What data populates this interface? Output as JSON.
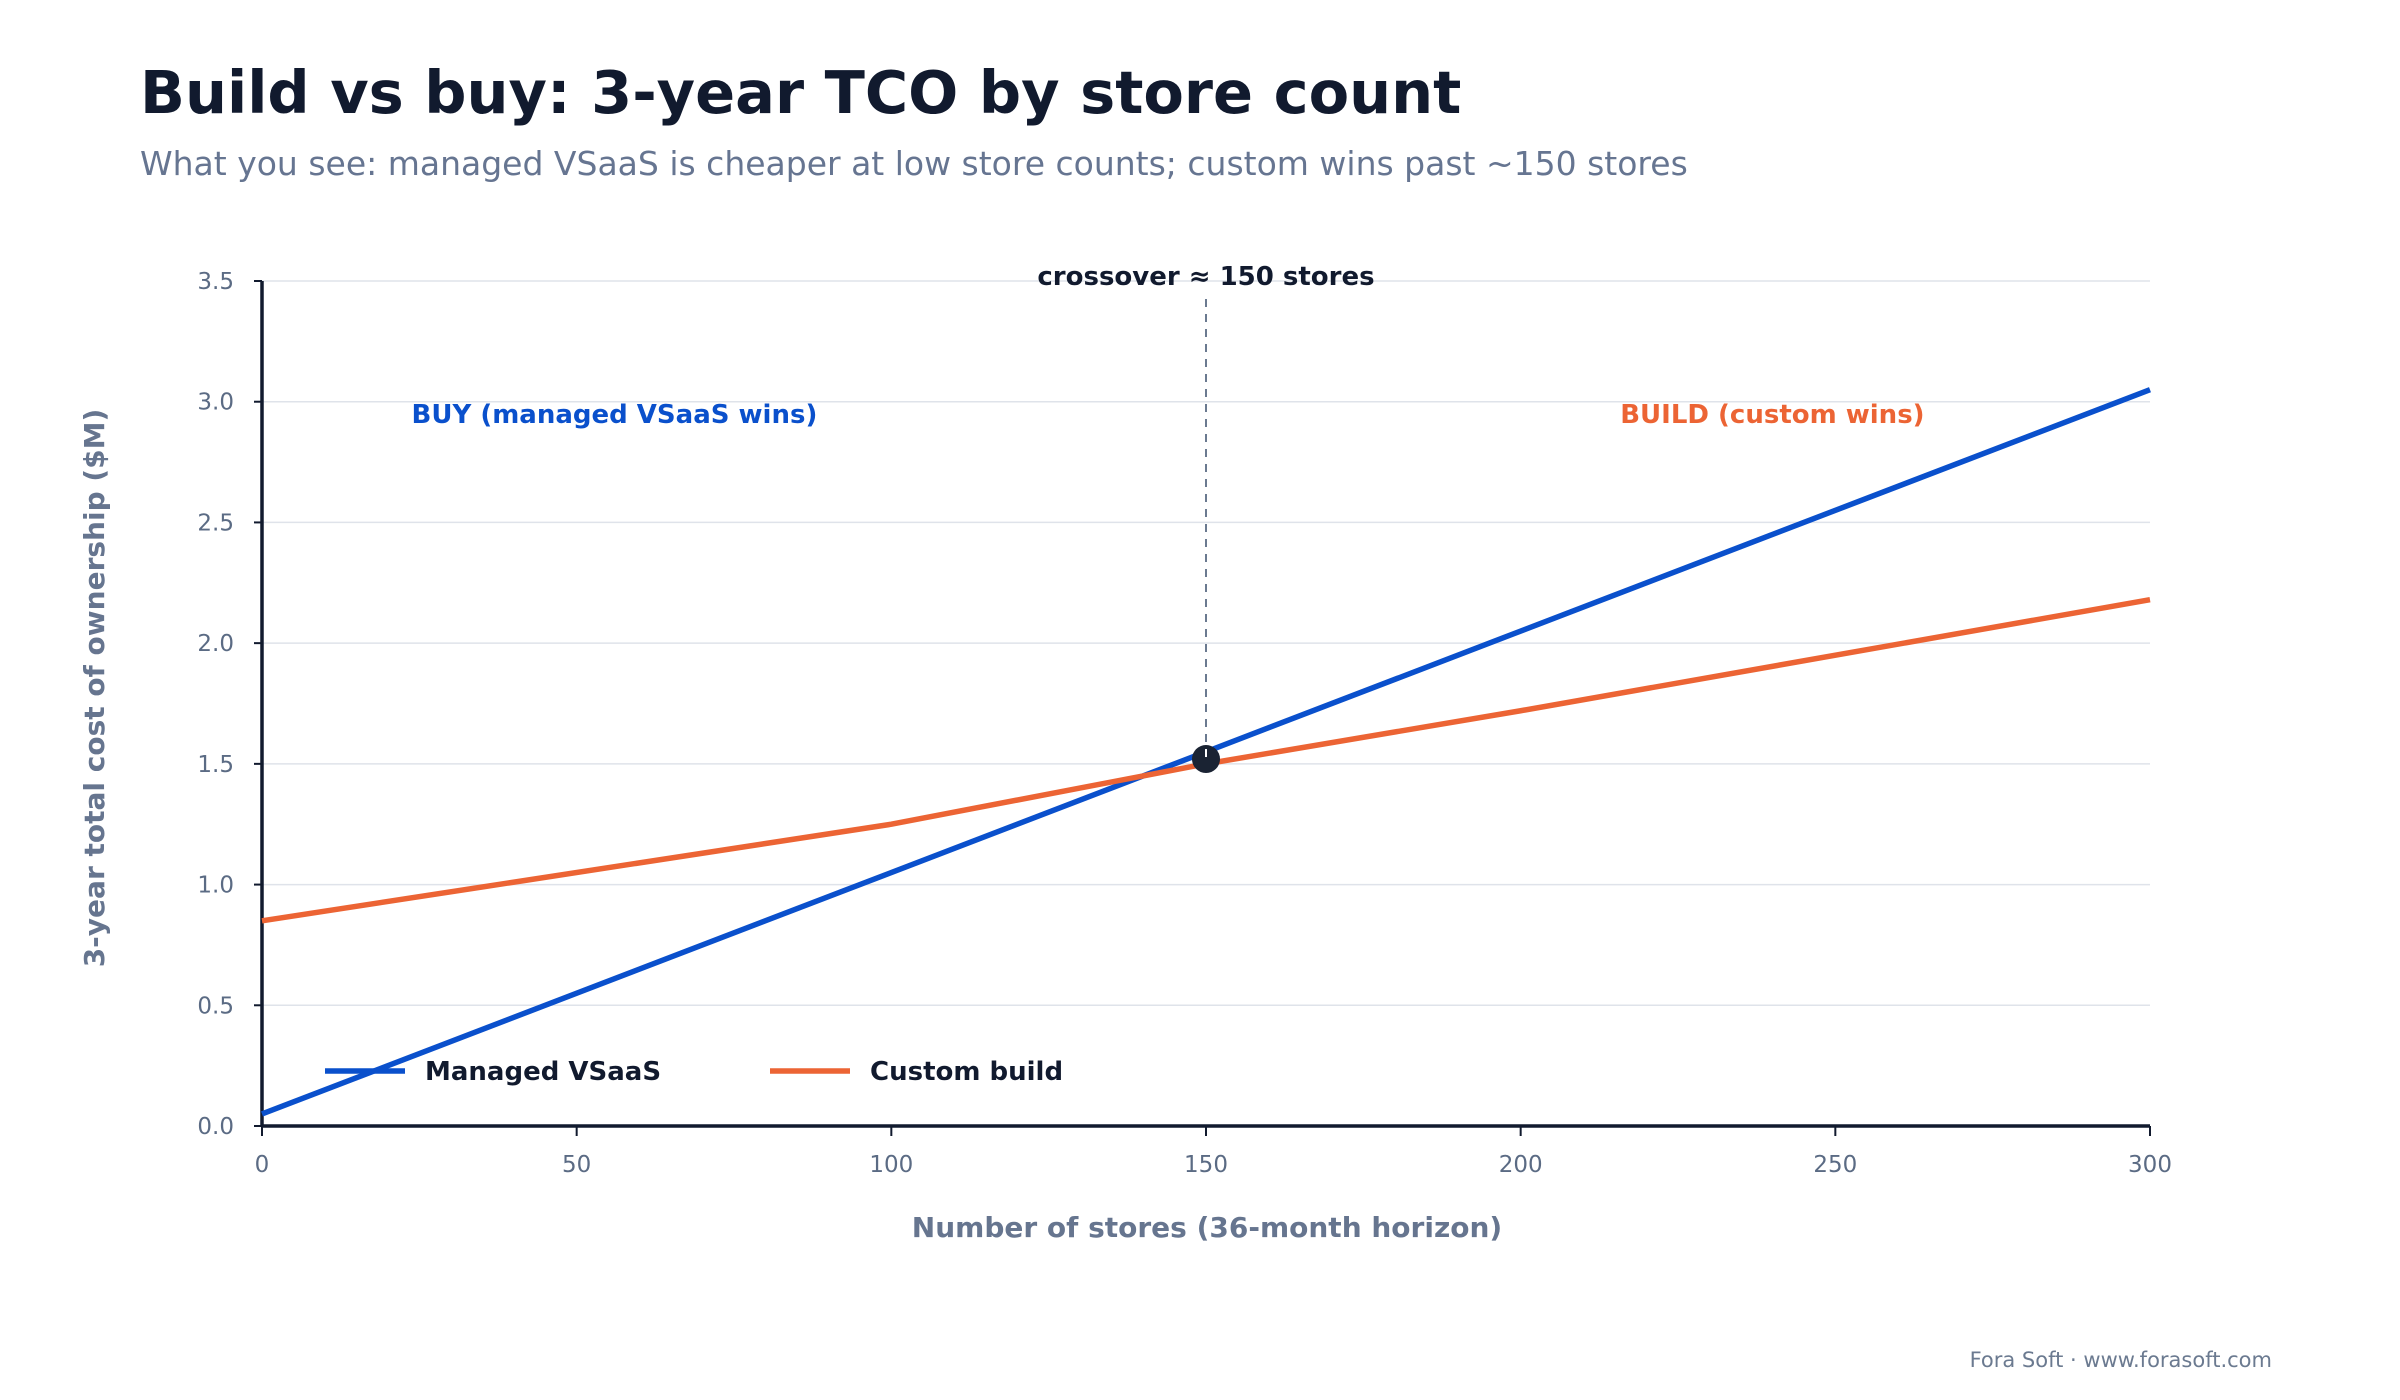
{
  "title": "Build vs buy: 3-year TCO by store count",
  "subtitle": "What you see: managed VSaaS is cheaper at low store counts; custom wins past ~150 stores",
  "footer": "Fora Soft · www.forasoft.com",
  "colors": {
    "managed": "#0a50cc",
    "custom": "#ec6434",
    "axis": "#111a2e",
    "marker": "#1a2333",
    "crossover_line": "#6b7a90",
    "grid": "#dfe3ea"
  },
  "chart_data": {
    "type": "line",
    "title": "Build vs buy: 3-year TCO by store count",
    "subtitle": "What you see: managed VSaaS is cheaper at low store counts; custom wins past ~150 stores",
    "xlabel": "Number of stores (36-month horizon)",
    "ylabel": "3-year total cost of ownership ($M)",
    "xlim": [
      0,
      300
    ],
    "ylim": [
      0,
      3.5
    ],
    "x_ticks": [
      0,
      50,
      100,
      150,
      200,
      250,
      300
    ],
    "x_tick_labels": [
      "0",
      "50",
      "100",
      "150",
      "200",
      "250",
      "300"
    ],
    "y_ticks": [
      0,
      0.5,
      1.0,
      1.5,
      2.0,
      2.5,
      3.0,
      3.5
    ],
    "y_tick_labels": [
      "0.0",
      "0.5",
      "1.0",
      "1.5",
      "2.0",
      "2.5",
      "3.0",
      "3.5"
    ],
    "grid": true,
    "legend_position": "bottom-left inside plot",
    "series": [
      {
        "name": "Managed VSaaS",
        "color": "#0a50cc",
        "x": [
          0,
          150,
          300
        ],
        "y": [
          0.05,
          1.55,
          3.05
        ]
      },
      {
        "name": "Custom build",
        "color": "#ec6434",
        "x": [
          0,
          100,
          150,
          200,
          300
        ],
        "y": [
          0.85,
          1.25,
          1.5,
          1.72,
          2.18
        ]
      }
    ],
    "crossover": {
      "x": 150,
      "y": 1.52,
      "label": "crossover ≈ 150 stores"
    },
    "region_labels": [
      {
        "text": "BUY (managed VSaaS wins)",
        "x": 56,
        "y": 2.95,
        "color": "#0a50cc"
      },
      {
        "text": "BUILD (custom wins)",
        "x": 240,
        "y": 2.95,
        "color": "#ec6434"
      }
    ]
  }
}
